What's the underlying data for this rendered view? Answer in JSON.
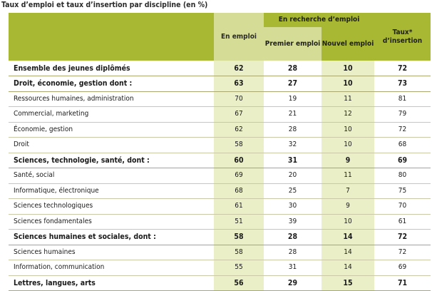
{
  "title": "Taux d’emploi et taux d’insertion par discipline (en %)",
  "header": {
    "group": "En recherche d’emploi",
    "en_emploi": "En emploi",
    "premier": "Premier emploi",
    "nouvel": "Nouvel emploi",
    "taux": "Taux* d’insertion"
  },
  "rows": [
    {
      "label": "Ensemble des jeunes diplômés",
      "en_emploi": "62",
      "premier": "28",
      "nouvel": "10",
      "taux": "72",
      "bold": true
    },
    {
      "label": "Droit, économie, gestion dont :",
      "en_emploi": "63",
      "premier": "27",
      "nouvel": "10",
      "taux": "73",
      "bold": true
    },
    {
      "label": "Ressources humaines, administration",
      "en_emploi": "70",
      "premier": "19",
      "nouvel": "11",
      "taux": "81",
      "bold": false
    },
    {
      "label": "Commercial, marketing",
      "en_emploi": "67",
      "premier": "21",
      "nouvel": "12",
      "taux": "79",
      "bold": false
    },
    {
      "label": "Économie, gestion",
      "en_emploi": "62",
      "premier": "28",
      "nouvel": "10",
      "taux": "72",
      "bold": false
    },
    {
      "label": "Droit",
      "en_emploi": "58",
      "premier": "32",
      "nouvel": "10",
      "taux": "68",
      "bold": false
    },
    {
      "label": "Sciences, technologie, santé, dont :",
      "en_emploi": "60",
      "premier": "31",
      "nouvel": "9",
      "taux": "69",
      "bold": true
    },
    {
      "label": "Santé, social",
      "en_emploi": "69",
      "premier": "20",
      "nouvel": "11",
      "taux": "80",
      "bold": false
    },
    {
      "label": "Informatique, électronique",
      "en_emploi": "68",
      "premier": "25",
      "nouvel": "7",
      "taux": "75",
      "bold": false
    },
    {
      "label": "Sciences technologiques",
      "en_emploi": "61",
      "premier": "30",
      "nouvel": "9",
      "taux": "70",
      "bold": false
    },
    {
      "label": "Sciences fondamentales",
      "en_emploi": "51",
      "premier": "39",
      "nouvel": "10",
      "taux": "61",
      "bold": false
    },
    {
      "label": "Sciences humaines et sociales, dont :",
      "en_emploi": "58",
      "premier": "28",
      "nouvel": "14",
      "taux": "72",
      "bold": true
    },
    {
      "label": "Sciences humaines",
      "en_emploi": "58",
      "premier": "28",
      "nouvel": "14",
      "taux": "72",
      "bold": false
    },
    {
      "label": "Information, communication",
      "en_emploi": "55",
      "premier": "31",
      "nouvel": "14",
      "taux": "69",
      "bold": false
    },
    {
      "label": "Lettres, langues, arts",
      "en_emploi": "56",
      "premier": "29",
      "nouvel": "15",
      "taux": "71",
      "bold": true
    }
  ]
}
